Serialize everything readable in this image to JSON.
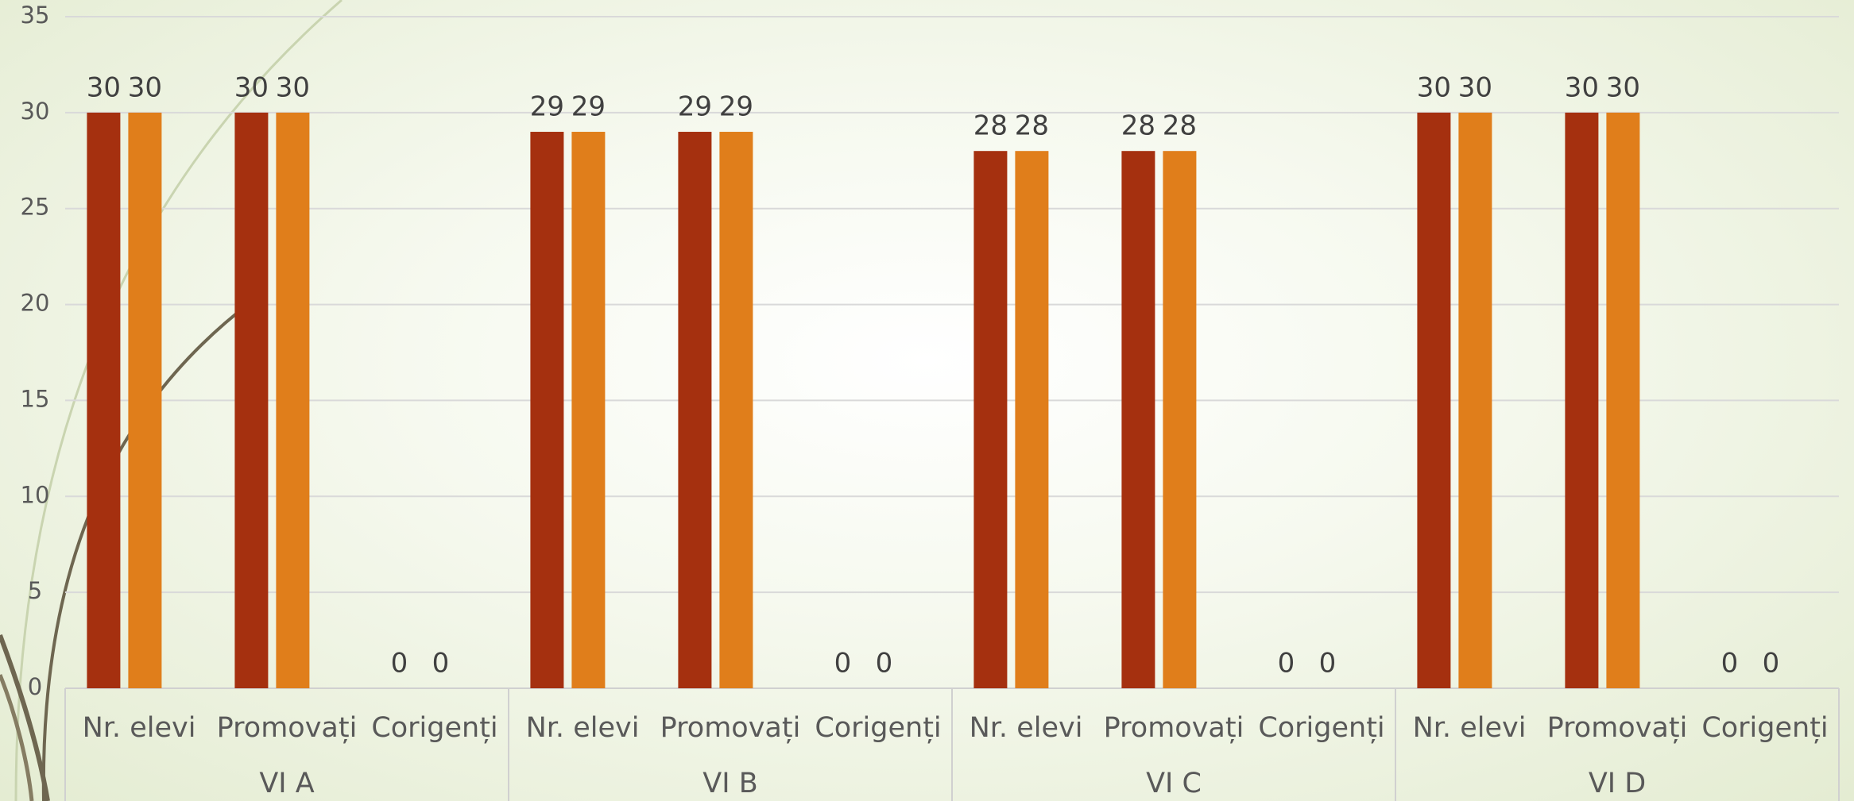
{
  "chart_data": {
    "type": "bar",
    "categories": [
      "Nr. elevi",
      "Promovați",
      "Corigenți",
      "Nr. elevi",
      "Promovați",
      "Corigenți",
      "Nr. elevi",
      "Promovați",
      "Corigenți",
      "Nr. elevi",
      "Promovați",
      "Corigenți"
    ],
    "groups": [
      "VI A",
      "VI B",
      "VI C",
      "VI D"
    ],
    "series": [
      {
        "color": "#a5300f",
        "values": [
          30,
          30,
          0,
          29,
          29,
          0,
          28,
          28,
          0,
          30,
          30,
          0
        ]
      },
      {
        "color": "#e07e1b",
        "values": [
          30,
          30,
          0,
          29,
          29,
          0,
          28,
          28,
          0,
          30,
          30,
          0
        ]
      }
    ],
    "ylim": [
      0,
      35
    ],
    "yticks": [
      0,
      5,
      10,
      15,
      20,
      25,
      30,
      35
    ],
    "grid": true
  }
}
